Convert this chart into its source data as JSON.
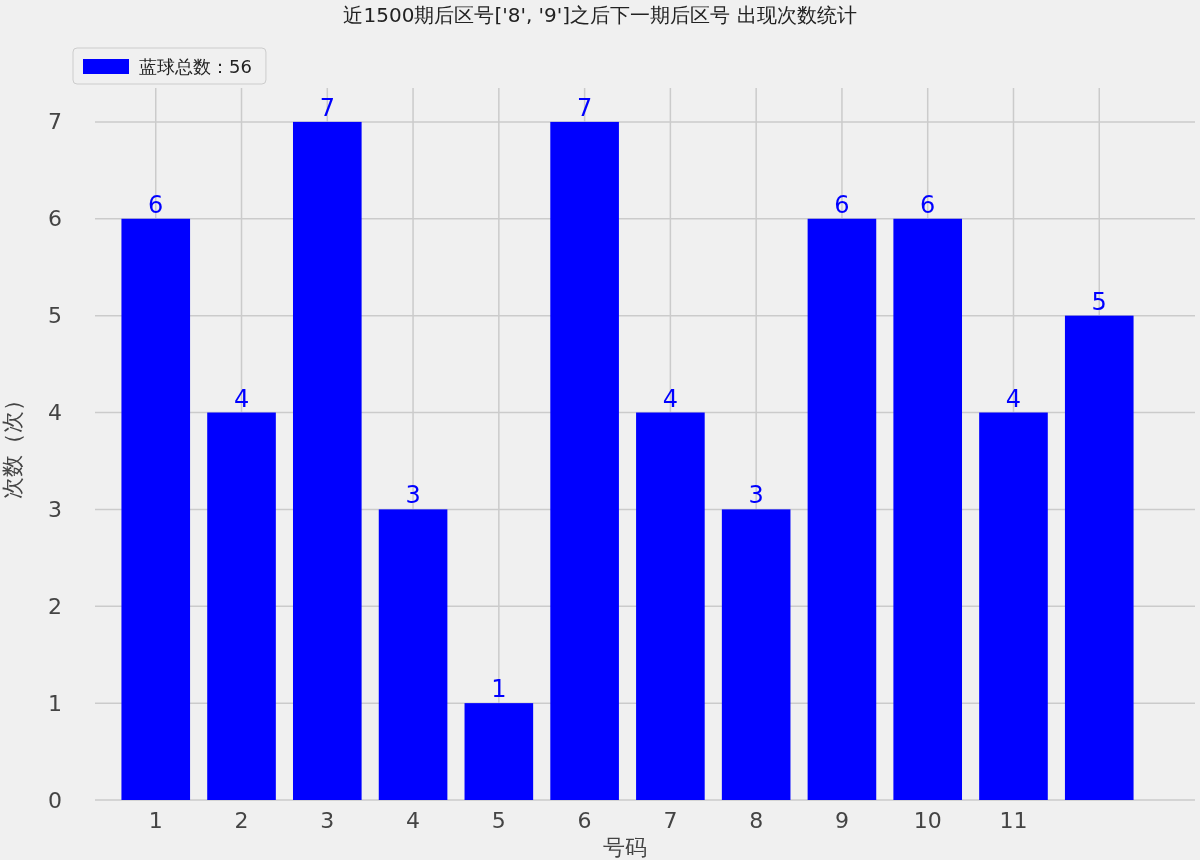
{
  "chart_data": {
    "type": "bar",
    "title": "近1500期后区号['8', '9']之后下一期后区号 出现次数统计",
    "xlabel": "号码",
    "ylabel": "次数（次）",
    "categories": [
      "1",
      "2",
      "3",
      "4",
      "5",
      "6",
      "7",
      "8",
      "9",
      "10",
      "11",
      null
    ],
    "series": [
      {
        "name": "蓝球总数：56",
        "color": "#0000ff",
        "values": [
          6,
          4,
          7,
          3,
          1,
          7,
          4,
          3,
          6,
          6,
          4,
          5
        ]
      }
    ],
    "ylim": [
      0,
      7.35
    ],
    "yticks": [
      0,
      1,
      2,
      3,
      4,
      5,
      6,
      7
    ],
    "grid": true,
    "legend": "top left",
    "data_labels": true
  }
}
